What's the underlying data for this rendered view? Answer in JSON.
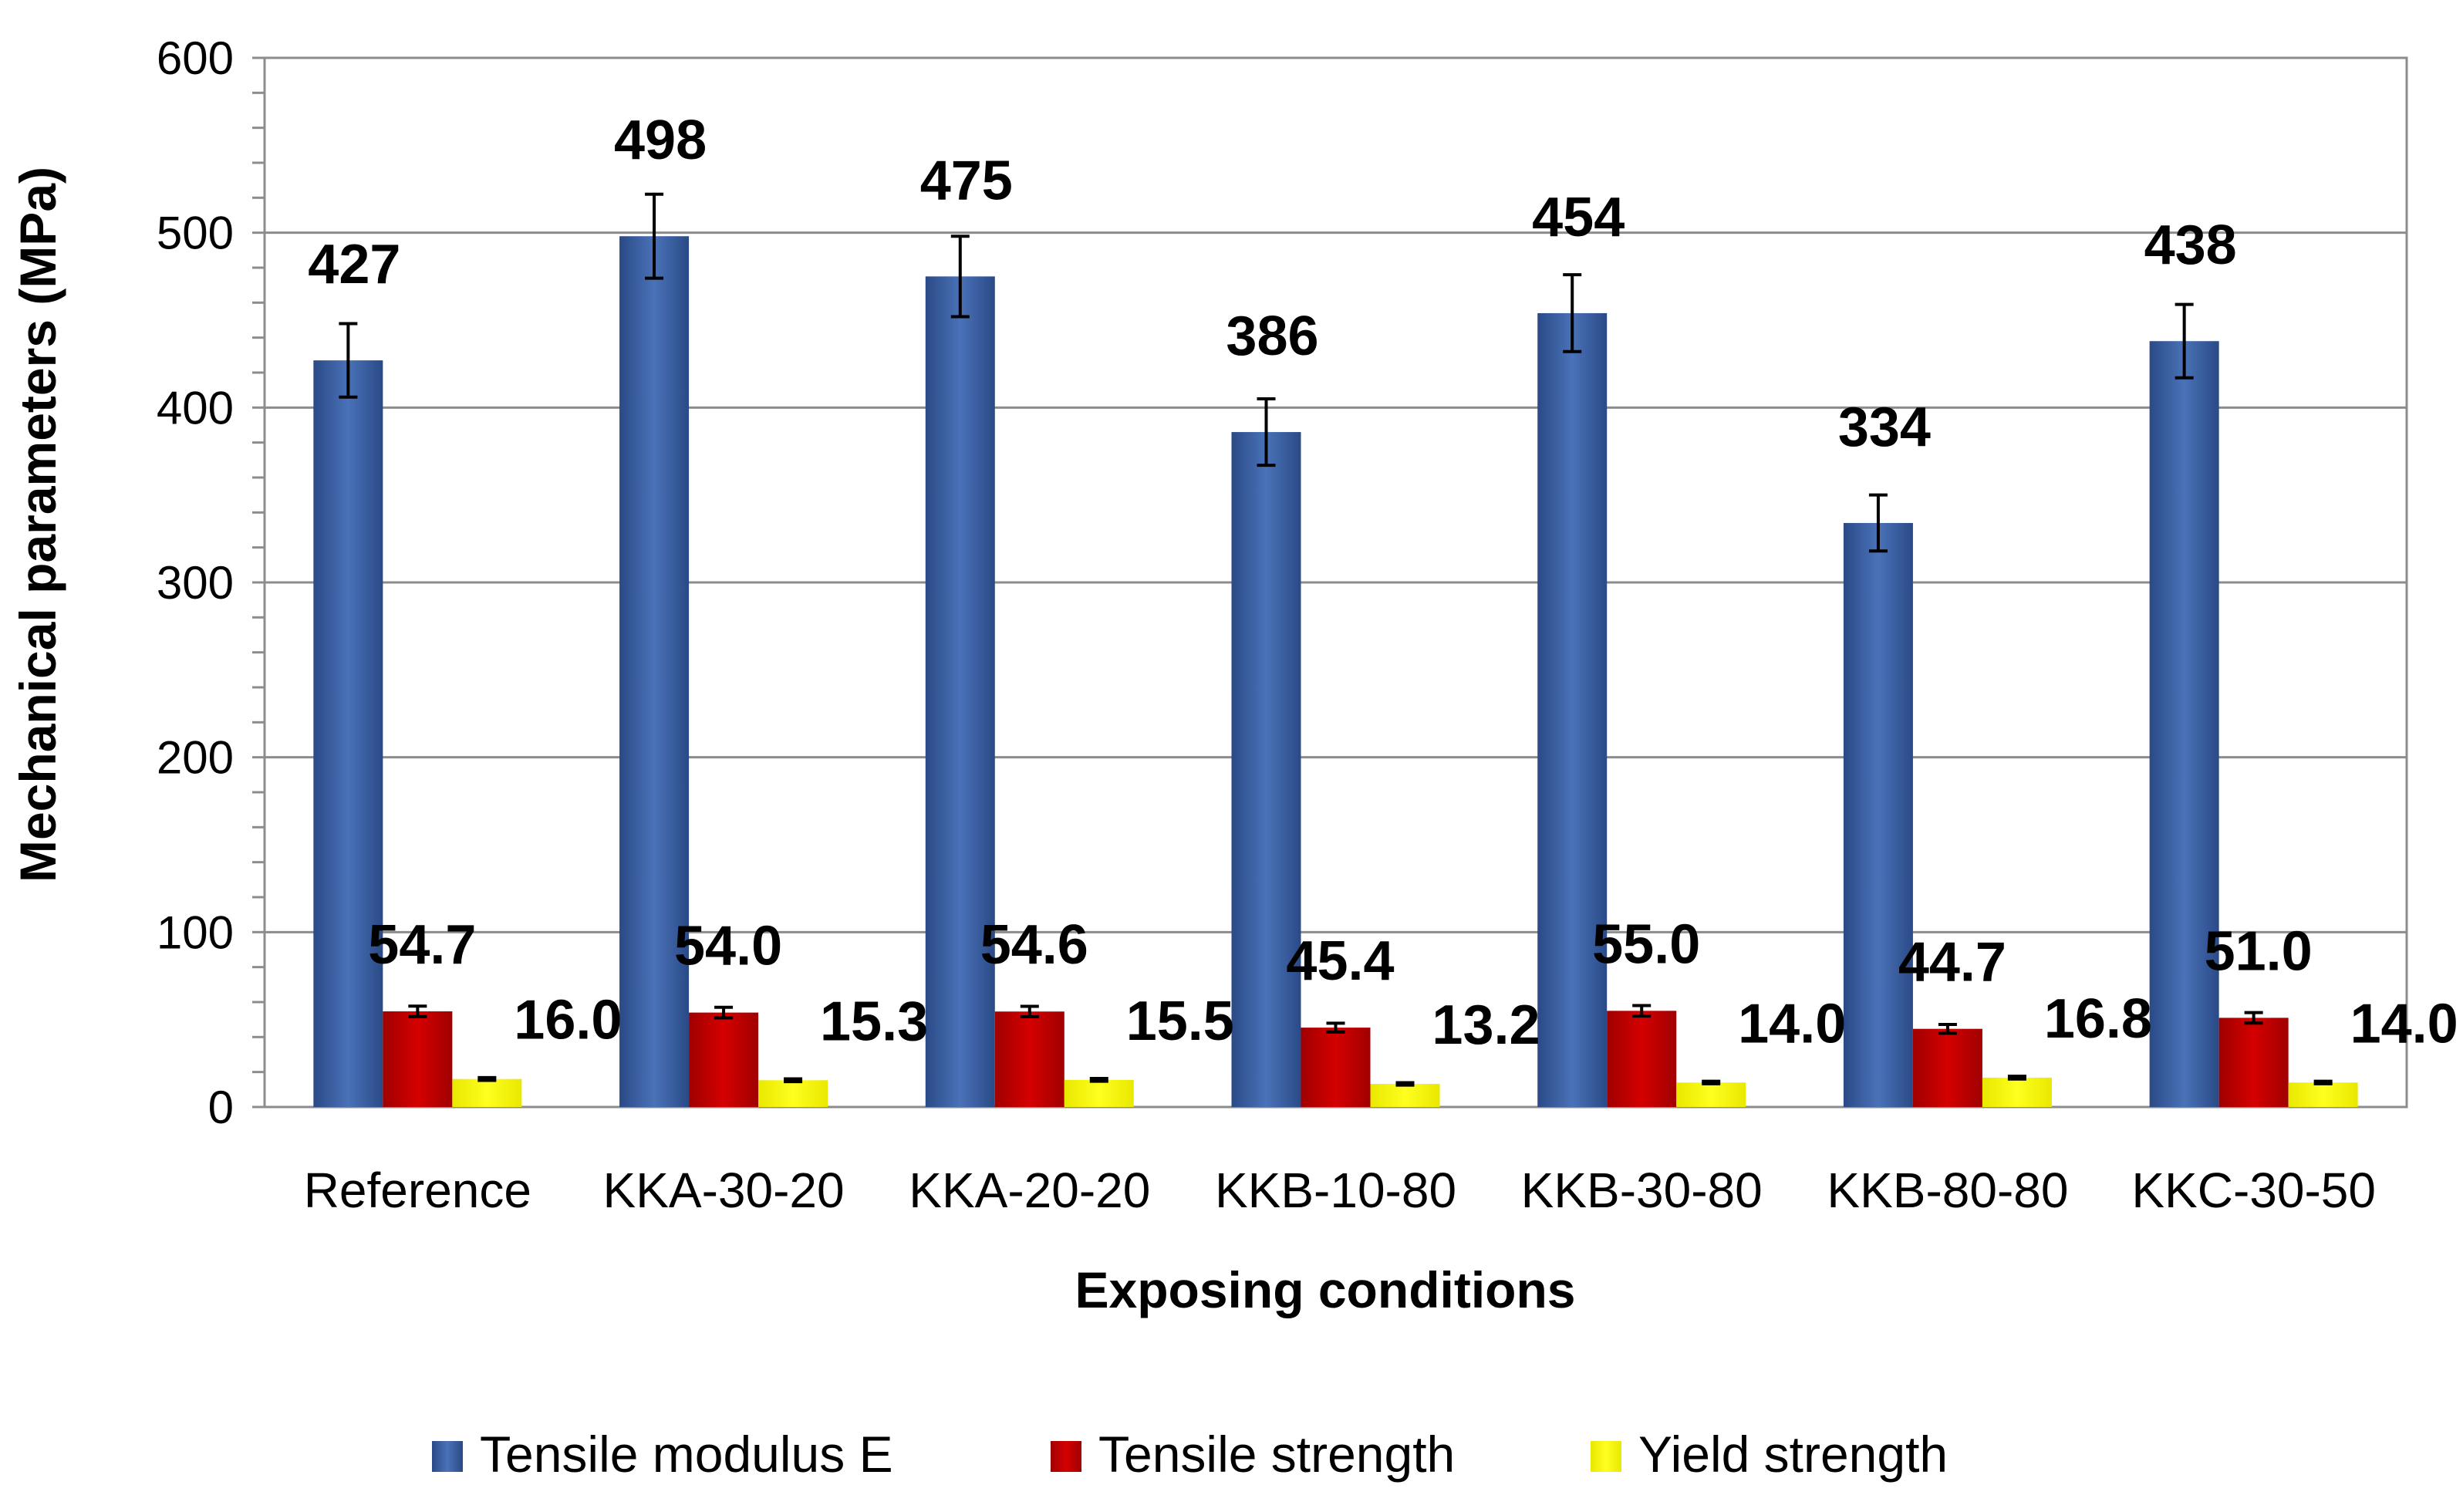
{
  "chart_data": {
    "type": "bar",
    "title": "",
    "xlabel": "Exposing conditions",
    "ylabel": "Mechanical parameters (MPa)",
    "ylim": [
      0,
      600
    ],
    "yticks": [
      0,
      100,
      200,
      300,
      400,
      500,
      600
    ],
    "grid": true,
    "legend_position": "bottom",
    "categories": [
      "Reference",
      "KKA-30-20",
      "KKA-20-20",
      "KKB-10-80",
      "KKB-30-80",
      "KKB-80-80",
      "KKC-30-50"
    ],
    "series": [
      {
        "name": "Tensile modulus E",
        "color": "#3a5fa0",
        "values": [
          427,
          498,
          475,
          386,
          454,
          334,
          438
        ],
        "labels": [
          "427",
          "498",
          "475",
          "386",
          "454",
          "334",
          "438"
        ],
        "errors": [
          21,
          24,
          23,
          19,
          22,
          16,
          21
        ]
      },
      {
        "name": "Tensile strength",
        "color": "#c00000",
        "values": [
          54.7,
          54.0,
          54.6,
          45.4,
          55.0,
          44.7,
          51.0
        ],
        "labels": [
          "54.7",
          "54.0",
          "54.6",
          "45.4",
          "55.0",
          "44.7",
          "51.0"
        ],
        "errors": [
          3,
          3,
          3,
          2.5,
          3,
          2.5,
          3
        ]
      },
      {
        "name": "Yield strength",
        "color": "#ffff00",
        "values": [
          16.0,
          15.3,
          15.5,
          13.2,
          14.0,
          16.8,
          14.0
        ],
        "labels": [
          "16.0",
          "15.3",
          "15.5",
          "13.2",
          "14.0",
          "16.8",
          "14.0"
        ],
        "errors": [
          0.8,
          0.8,
          0.8,
          0.7,
          0.7,
          0.8,
          0.7
        ]
      }
    ]
  }
}
